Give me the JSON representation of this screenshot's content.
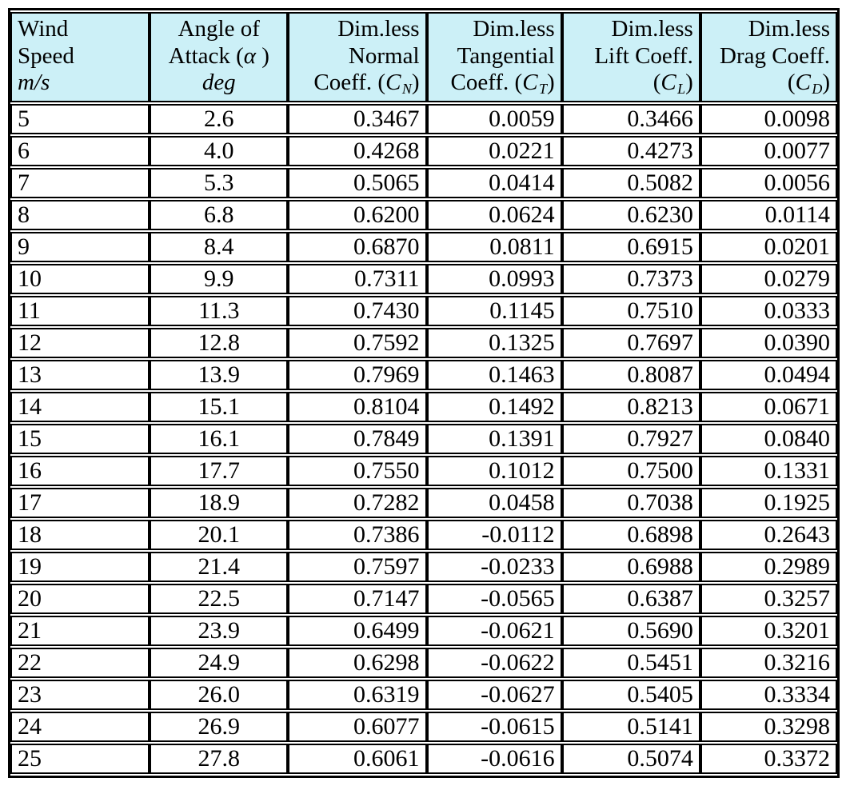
{
  "colors": {
    "header_bg": "#CCF0F7",
    "border": "#000000",
    "text": "#000000",
    "page_bg": "#FFFFFF"
  },
  "header": {
    "columns": [
      {
        "name": "wind-speed",
        "align": "left",
        "lines": [
          [
            {
              "t": "Wind"
            }
          ],
          [
            {
              "t": "Speed"
            }
          ],
          [
            {
              "t": "m/s",
              "i": true
            }
          ]
        ]
      },
      {
        "name": "angle-of-attack",
        "align": "center",
        "lines": [
          [
            {
              "t": "Angle of"
            }
          ],
          [
            {
              "t": "Attack ("
            },
            {
              "t": "α",
              "i": true
            },
            {
              "t": " )"
            }
          ],
          [
            {
              "t": "deg",
              "i": true
            }
          ]
        ]
      },
      {
        "name": "normal-coeff",
        "align": "right",
        "lines": [
          [
            {
              "t": "Dim.less"
            }
          ],
          [
            {
              "t": "Normal"
            }
          ],
          [
            {
              "t": "Coeff. ("
            },
            {
              "t": "C",
              "i": true
            },
            {
              "t": "N",
              "sub": true
            },
            {
              "t": ")"
            }
          ]
        ]
      },
      {
        "name": "tangential-coeff",
        "align": "right",
        "lines": [
          [
            {
              "t": "Dim.less"
            }
          ],
          [
            {
              "t": "Tangential"
            }
          ],
          [
            {
              "t": "Coeff. ("
            },
            {
              "t": "C",
              "i": true
            },
            {
              "t": "T",
              "sub": true
            },
            {
              "t": ")"
            }
          ]
        ]
      },
      {
        "name": "lift-coeff",
        "align": "right",
        "lines": [
          [
            {
              "t": "Dim.less"
            }
          ],
          [
            {
              "t": "Lift Coeff."
            }
          ],
          [
            {
              "t": "("
            },
            {
              "t": "C",
              "i": true
            },
            {
              "t": "L",
              "sub": true
            },
            {
              "t": ")"
            }
          ]
        ]
      },
      {
        "name": "drag-coeff",
        "align": "right",
        "lines": [
          [
            {
              "t": "Dim.less"
            }
          ],
          [
            {
              "t": "Drag Coeff."
            }
          ],
          [
            {
              "t": "("
            },
            {
              "t": "C",
              "i": true
            },
            {
              "t": "D",
              "sub": true
            },
            {
              "t": ")"
            }
          ]
        ]
      }
    ]
  },
  "display_rows": [
    [
      "5",
      "2.6",
      "0.3467",
      "0.0059",
      "0.3466",
      "0.0098"
    ],
    [
      "6",
      "4.0",
      "0.4268",
      "0.0221",
      "0.4273",
      "0.0077"
    ],
    [
      "7",
      "5.3",
      "0.5065",
      "0.0414",
      "0.5082",
      "0.0056"
    ],
    [
      "8",
      "6.8",
      "0.6200",
      "0.0624",
      "0.6230",
      "0.0114"
    ],
    [
      "9",
      "8.4",
      "0.6870",
      "0.0811",
      "0.6915",
      "0.0201"
    ],
    [
      "10",
      "9.9",
      "0.7311",
      "0.0993",
      "0.7373",
      "0.0279"
    ],
    [
      "11",
      "11.3",
      "0.7430",
      "0.1145",
      "0.7510",
      "0.0333"
    ],
    [
      "12",
      "12.8",
      "0.7592",
      "0.1325",
      "0.7697",
      "0.0390"
    ],
    [
      "13",
      "13.9",
      "0.7969",
      "0.1463",
      "0.8087",
      "0.0494"
    ],
    [
      "14",
      "15.1",
      "0.8104",
      "0.1492",
      "0.8213",
      "0.0671"
    ],
    [
      "15",
      "16.1",
      "0.7849",
      "0.1391",
      "0.7927",
      "0.0840"
    ],
    [
      "16",
      "17.7",
      "0.7550",
      "0.1012",
      "0.7500",
      "0.1331"
    ],
    [
      "17",
      "18.9",
      "0.7282",
      "0.0458",
      "0.7038",
      "0.1925"
    ],
    [
      "18",
      "20.1",
      "0.7386",
      "-0.0112",
      "0.6898",
      "0.2643"
    ],
    [
      "19",
      "21.4",
      "0.7597",
      "-0.0233",
      "0.6988",
      "0.2989"
    ],
    [
      "20",
      "22.5",
      "0.7147",
      "-0.0565",
      "0.6387",
      "0.3257"
    ],
    [
      "21",
      "23.9",
      "0.6499",
      "-0.0621",
      "0.5690",
      "0.3201"
    ],
    [
      "22",
      "24.9",
      "0.6298",
      "-0.0622",
      "0.5451",
      "0.3216"
    ],
    [
      "23",
      "26.0",
      "0.6319",
      "-0.0627",
      "0.5405",
      "0.3334"
    ],
    [
      "24",
      "26.9",
      "0.6077",
      "-0.0615",
      "0.5141",
      "0.3298"
    ],
    [
      "25",
      "27.8",
      "0.6061",
      "-0.0616",
      "0.5074",
      "0.3372"
    ]
  ],
  "chart_data": {
    "type": "table",
    "columns": [
      "Wind Speed m/s",
      "Angle of Attack (α) deg",
      "Dim.less Normal Coeff. (C_N)",
      "Dim.less Tangential Coeff. (C_T)",
      "Dim.less Lift Coeff. (C_L)",
      "Dim.less Drag Coeff. (C_D)"
    ],
    "rows": [
      [
        5,
        2.6,
        0.3467,
        0.0059,
        0.3466,
        0.0098
      ],
      [
        6,
        4.0,
        0.4268,
        0.0221,
        0.4273,
        0.0077
      ],
      [
        7,
        5.3,
        0.5065,
        0.0414,
        0.5082,
        0.0056
      ],
      [
        8,
        6.8,
        0.62,
        0.0624,
        0.623,
        0.0114
      ],
      [
        9,
        8.4,
        0.687,
        0.0811,
        0.6915,
        0.0201
      ],
      [
        10,
        9.9,
        0.7311,
        0.0993,
        0.7373,
        0.0279
      ],
      [
        11,
        11.3,
        0.743,
        0.1145,
        0.751,
        0.0333
      ],
      [
        12,
        12.8,
        0.7592,
        0.1325,
        0.7697,
        0.039
      ],
      [
        13,
        13.9,
        0.7969,
        0.1463,
        0.8087,
        0.0494
      ],
      [
        14,
        15.1,
        0.8104,
        0.1492,
        0.8213,
        0.0671
      ],
      [
        15,
        16.1,
        0.7849,
        0.1391,
        0.7927,
        0.084
      ],
      [
        16,
        17.7,
        0.755,
        0.1012,
        0.75,
        0.1331
      ],
      [
        17,
        18.9,
        0.7282,
        0.0458,
        0.7038,
        0.1925
      ],
      [
        18,
        20.1,
        0.7386,
        -0.0112,
        0.6898,
        0.2643
      ],
      [
        19,
        21.4,
        0.7597,
        -0.0233,
        0.6988,
        0.2989
      ],
      [
        20,
        22.5,
        0.7147,
        -0.0565,
        0.6387,
        0.3257
      ],
      [
        21,
        23.9,
        0.6499,
        -0.0621,
        0.569,
        0.3201
      ],
      [
        22,
        24.9,
        0.6298,
        -0.0622,
        0.5451,
        0.3216
      ],
      [
        23,
        26.0,
        0.6319,
        -0.0627,
        0.5405,
        0.3334
      ],
      [
        24,
        26.9,
        0.6077,
        -0.0615,
        0.5141,
        0.3298
      ],
      [
        25,
        27.8,
        0.6061,
        -0.0616,
        0.5074,
        0.3372
      ]
    ]
  }
}
